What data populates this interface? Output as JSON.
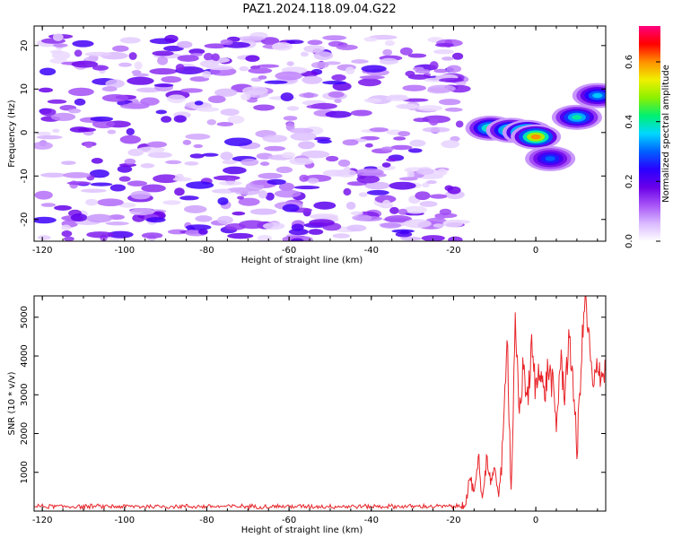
{
  "title": "PAZ1.2024.118.09.04.G22",
  "chart_data": [
    {
      "type": "heatmap",
      "xlabel": "Height of straight line (km)",
      "ylabel": "Frequency (Hz)",
      "xlim": [
        -122,
        17
      ],
      "ylim": [
        -25,
        24.5
      ],
      "xticks": [
        -120,
        -100,
        -80,
        -60,
        -40,
        -20,
        0
      ],
      "yticks": [
        -20,
        -10,
        0,
        10,
        20
      ],
      "colorbar": {
        "label": "Normalized spectral amplitude",
        "range": [
          0.0,
          0.72
        ],
        "ticks": [
          0.0,
          0.2,
          0.4,
          0.6
        ],
        "colormap": [
          "#ffffff",
          "#d9b8ff",
          "#a855f7",
          "#6a00e8",
          "#2a00ff",
          "#0060ff",
          "#00d8ff",
          "#00f070",
          "#8cf000",
          "#f0f000",
          "#ff9000",
          "#ff0000",
          "#ff0080"
        ]
      },
      "noise_band": {
        "x": [
          -120,
          -18
        ],
        "y": [
          -25,
          22.5
        ],
        "typical_amplitude": 0.1
      },
      "features": [
        {
          "x": -11,
          "y": 1,
          "amplitude": 0.45
        },
        {
          "x": -6,
          "y": 0.5,
          "amplitude": 0.5
        },
        {
          "x": -2,
          "y": 0,
          "amplitude": 0.72
        },
        {
          "x": 0,
          "y": -1,
          "amplitude": 0.6
        },
        {
          "x": 3.5,
          "y": -6,
          "amplitude": 0.3
        },
        {
          "x": 10,
          "y": 3.5,
          "amplitude": 0.4
        },
        {
          "x": 15,
          "y": 8.5,
          "amplitude": 0.35
        }
      ]
    },
    {
      "type": "line",
      "xlabel": "Height of straight line (km)",
      "ylabel": "SNR (10 * v/v)",
      "xlim": [
        -122,
        17
      ],
      "ylim": [
        0,
        5550
      ],
      "xticks": [
        -120,
        -100,
        -80,
        -60,
        -40,
        -20,
        0
      ],
      "yticks": [
        1000,
        2000,
        3000,
        4000,
        5000
      ],
      "color": "#e8252a",
      "baseline": {
        "x": [
          -122,
          -18
        ],
        "level": 120,
        "jitter": 70
      },
      "series": [
        {
          "x": [
            -18,
            -17,
            -16,
            -15,
            -14,
            -13,
            -12,
            -11,
            -10,
            -9,
            -8,
            -7,
            -6,
            -5,
            -4,
            -3,
            -2,
            -1,
            0,
            1,
            2,
            3,
            4,
            5,
            6,
            7,
            8,
            9,
            10,
            11,
            12,
            13,
            14,
            15,
            16,
            17
          ],
          "values": [
            150,
            250,
            900,
            400,
            1200,
            300,
            1400,
            800,
            1000,
            500,
            1500,
            4800,
            500,
            4700,
            2500,
            3800,
            2800,
            4200,
            3100,
            3900,
            2900,
            3700,
            3300,
            2200,
            3900,
            3100,
            4300,
            3600,
            1400,
            3800,
            5550,
            4300,
            3000,
            3900,
            3500,
            3600
          ]
        }
      ]
    }
  ]
}
